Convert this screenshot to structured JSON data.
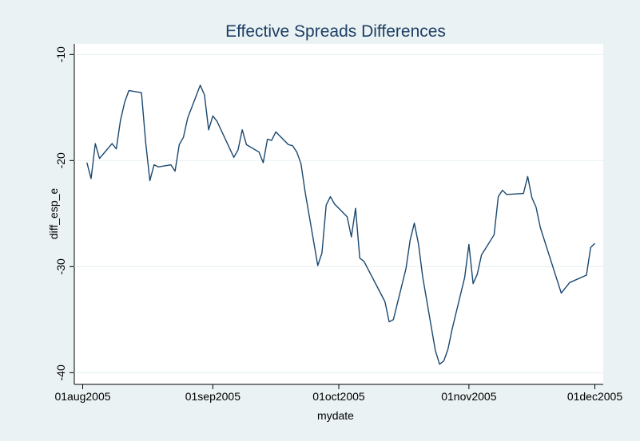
{
  "chart_data": {
    "type": "line",
    "title": "Effective Spreads Differences",
    "x_label": "mydate",
    "y_label": "diff_esp_e",
    "x": [
      "2005-08-02",
      "2005-08-03",
      "2005-08-04",
      "2005-08-05",
      "2005-08-08",
      "2005-08-09",
      "2005-08-10",
      "2005-08-11",
      "2005-08-12",
      "2005-08-15",
      "2005-08-16",
      "2005-08-17",
      "2005-08-18",
      "2005-08-19",
      "2005-08-22",
      "2005-08-23",
      "2005-08-24",
      "2005-08-25",
      "2005-08-26",
      "2005-08-29",
      "2005-08-30",
      "2005-08-31",
      "2005-09-01",
      "2005-09-02",
      "2005-09-06",
      "2005-09-07",
      "2005-09-08",
      "2005-09-09",
      "2005-09-12",
      "2005-09-13",
      "2005-09-14",
      "2005-09-15",
      "2005-09-16",
      "2005-09-19",
      "2005-09-20",
      "2005-09-21",
      "2005-09-22",
      "2005-09-23",
      "2005-09-26",
      "2005-09-27",
      "2005-09-28",
      "2005-09-29",
      "2005-09-30",
      "2005-10-03",
      "2005-10-04",
      "2005-10-05",
      "2005-10-06",
      "2005-10-07",
      "2005-10-12",
      "2005-10-13",
      "2005-10-14",
      "2005-10-17",
      "2005-10-18",
      "2005-10-19",
      "2005-10-20",
      "2005-10-21",
      "2005-10-24",
      "2005-10-25",
      "2005-10-26",
      "2005-10-27",
      "2005-10-28",
      "2005-10-31",
      "2005-11-01",
      "2005-11-02",
      "2005-11-03",
      "2005-11-04",
      "2005-11-07",
      "2005-11-08",
      "2005-11-09",
      "2005-11-10",
      "2005-11-14",
      "2005-11-15",
      "2005-11-16",
      "2005-11-17",
      "2005-11-18",
      "2005-11-23",
      "2005-11-25",
      "2005-11-29",
      "2005-11-30",
      "2005-12-01"
    ],
    "series": [
      {
        "name": "diff_esp_e",
        "color": "#1a476f",
        "values": [
          -20.2,
          -21.7,
          -18.4,
          -19.8,
          -18.4,
          -18.9,
          -16.2,
          -14.5,
          -13.4,
          -13.6,
          -18.3,
          -21.9,
          -20.4,
          -20.6,
          -20.4,
          -21.0,
          -18.5,
          -17.8,
          -16.0,
          -12.9,
          -13.8,
          -17.1,
          -15.8,
          -16.3,
          -19.7,
          -19.0,
          -17.1,
          -18.5,
          -19.2,
          -20.2,
          -18.0,
          -18.1,
          -17.3,
          -18.5,
          -18.6,
          -19.2,
          -20.3,
          -23.0,
          -29.9,
          -28.7,
          -24.2,
          -23.4,
          -24.1,
          -25.3,
          -27.2,
          -24.5,
          -29.2,
          -29.5,
          -33.3,
          -35.2,
          -35.0,
          -30.2,
          -27.5,
          -25.9,
          -27.9,
          -31.0,
          -37.9,
          -39.2,
          -38.9,
          -37.8,
          -35.9,
          -31.0,
          -27.9,
          -31.6,
          -30.7,
          -28.9,
          -27.0,
          -23.4,
          -22.8,
          -23.2,
          -23.1,
          -21.5,
          -23.5,
          -24.4,
          -26.3,
          -32.5,
          -31.5,
          -30.8,
          -28.2,
          -27.8
        ]
      }
    ],
    "xlim": [
      "2005-07-30",
      "2005-12-03"
    ],
    "xticks": [
      {
        "value": "2005-08-01",
        "label": "01aug2005"
      },
      {
        "value": "2005-09-01",
        "label": "01sep2005"
      },
      {
        "value": "2005-10-01",
        "label": "01oct2005"
      },
      {
        "value": "2005-11-01",
        "label": "01nov2005"
      },
      {
        "value": "2005-12-01",
        "label": "01dec2005"
      }
    ],
    "ylim": [
      -41.1,
      -9
    ],
    "yticks": [
      -10,
      -20,
      -30,
      -40
    ],
    "grid": true
  }
}
